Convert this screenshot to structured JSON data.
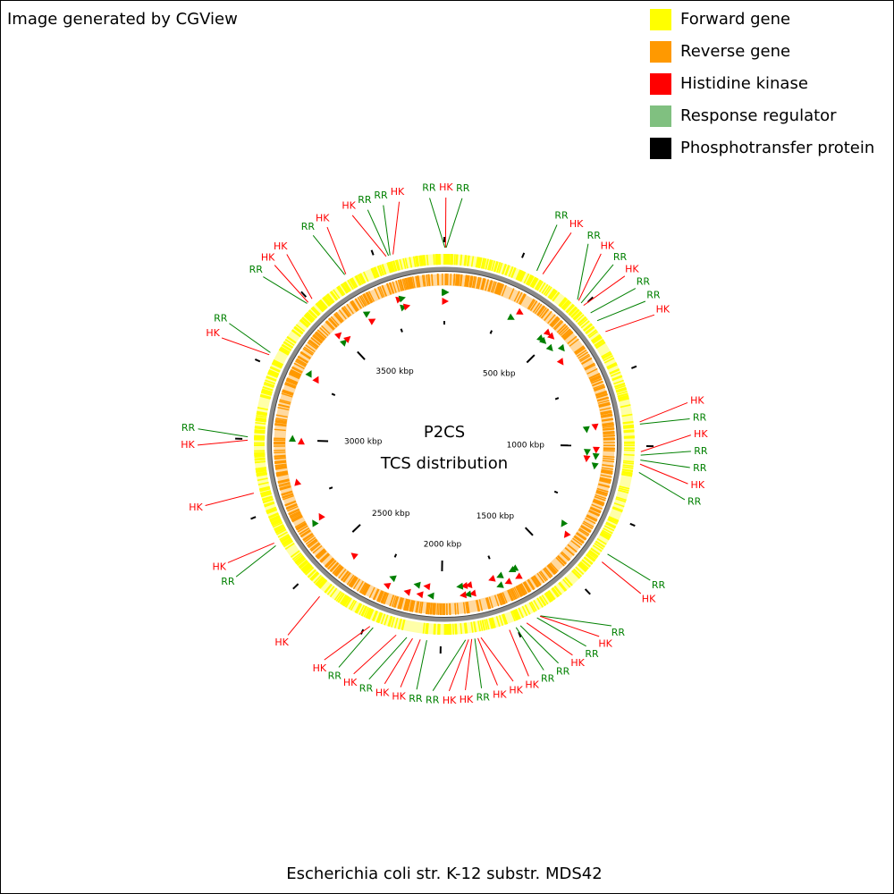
{
  "header": {
    "title": "Image generated by CGView"
  },
  "legend": [
    {
      "name": "Forward gene",
      "color": "#ffff00"
    },
    {
      "name": "Reverse gene",
      "color": "#ff9900"
    },
    {
      "name": "Histidine kinase",
      "color": "#ff0000"
    },
    {
      "name": "Response regulator",
      "color": "#80c080"
    },
    {
      "name": "Phosphotransfer protein",
      "color": "#000000"
    }
  ],
  "center": {
    "title": "P2CS",
    "subtitle": "TCS distribution"
  },
  "footer": {
    "organism": "Escherichia coli str. K-12 substr. MDS42"
  },
  "scale": {
    "lim": [
      0,
      3977
    ],
    "ticks": [
      {
        "value": 500,
        "label": "500 kbp"
      },
      {
        "value": 1000,
        "label": "1000 kbp"
      },
      {
        "value": 1500,
        "label": "1500 kbp"
      },
      {
        "value": 2000,
        "label": "2000 kbp"
      },
      {
        "value": 2500,
        "label": "2500 kbp"
      },
      {
        "value": 3000,
        "label": "3000 kbp"
      },
      {
        "value": 3500,
        "label": "3500 kbp"
      }
    ],
    "minor_ticks": [
      0,
      250,
      750,
      1250,
      1750,
      2250,
      2750,
      3250,
      3750
    ]
  },
  "features": [
    {
      "label": "RR",
      "kbp": 2,
      "color": "#008000"
    },
    {
      "label": "HK",
      "kbp": 4,
      "color": "#ff0000"
    },
    {
      "label": "RR",
      "kbp": 6,
      "color": "#008000"
    },
    {
      "label": "RR",
      "kbp": 310,
      "color": "#008000"
    },
    {
      "label": "HK",
      "kbp": 332,
      "color": "#ff0000"
    },
    {
      "label": "RR",
      "kbp": 471,
      "color": "#008000"
    },
    {
      "label": "HK",
      "kbp": 476,
      "color": "#ff0000"
    },
    {
      "label": "RR",
      "kbp": 487,
      "color": "#008000"
    },
    {
      "label": "HK",
      "kbp": 498,
      "color": "#ff0000"
    },
    {
      "label": "RR",
      "kbp": 531,
      "color": "#008000"
    },
    {
      "label": "RR",
      "kbp": 564,
      "color": "#008000"
    },
    {
      "label": "HK",
      "kbp": 608,
      "color": "#ff0000"
    },
    {
      "label": "HK",
      "kbp": 922,
      "color": "#ff0000"
    },
    {
      "label": "RR",
      "kbp": 929,
      "color": "#008000"
    },
    {
      "label": "HK",
      "kbp": 1018,
      "color": "#ff0000"
    },
    {
      "label": "RR",
      "kbp": 1029,
      "color": "#008000"
    },
    {
      "label": "RR",
      "kbp": 1045,
      "color": "#008000"
    },
    {
      "label": "HK",
      "kbp": 1058,
      "color": "#ff0000"
    },
    {
      "label": "RR",
      "kbp": 1085,
      "color": "#008000"
    },
    {
      "label": "RR",
      "kbp": 1369,
      "color": "#008000"
    },
    {
      "label": "HK",
      "kbp": 1400,
      "color": "#ff0000"
    },
    {
      "label": "RR",
      "kbp": 1665,
      "color": "#008000"
    },
    {
      "label": "HK",
      "kbp": 1667,
      "color": "#ff0000"
    },
    {
      "label": "RR",
      "kbp": 1678,
      "color": "#008000"
    },
    {
      "label": "HK",
      "kbp": 1715,
      "color": "#ff0000"
    },
    {
      "label": "RR",
      "kbp": 1737,
      "color": "#008000"
    },
    {
      "label": "RR",
      "kbp": 1752,
      "color": "#008000"
    },
    {
      "label": "HK",
      "kbp": 1775,
      "color": "#ff0000"
    },
    {
      "label": "HK",
      "kbp": 1870,
      "color": "#ff0000"
    },
    {
      "label": "HK",
      "kbp": 1880,
      "color": "#ff0000"
    },
    {
      "label": "RR",
      "kbp": 1890,
      "color": "#008000"
    },
    {
      "label": "HK",
      "kbp": 1900,
      "color": "#ff0000"
    },
    {
      "label": "HK",
      "kbp": 1910,
      "color": "#ff0000"
    },
    {
      "label": "RR",
      "kbp": 1920,
      "color": "#008000"
    },
    {
      "label": "RR",
      "kbp": 2045,
      "color": "#008000"
    },
    {
      "label": "HK",
      "kbp": 2066,
      "color": "#ff0000"
    },
    {
      "label": "HK",
      "kbp": 2091,
      "color": "#ff0000"
    },
    {
      "label": "RR",
      "kbp": 2110,
      "color": "#008000"
    },
    {
      "label": "HK",
      "kbp": 2145,
      "color": "#ff0000"
    },
    {
      "label": "RR",
      "kbp": 2223,
      "color": "#008000"
    },
    {
      "label": "HK",
      "kbp": 2234,
      "color": "#ff0000"
    },
    {
      "label": "HK",
      "kbp": 2423,
      "color": "#ff0000"
    },
    {
      "label": "RR",
      "kbp": 2640,
      "color": "#008000"
    },
    {
      "label": "HK",
      "kbp": 2650,
      "color": "#ff0000"
    },
    {
      "label": "HK",
      "kbp": 2824,
      "color": "#ff0000"
    },
    {
      "label": "HK",
      "kbp": 2996,
      "color": "#ff0000"
    },
    {
      "label": "RR",
      "kbp": 3007,
      "color": "#008000"
    },
    {
      "label": "HK",
      "kbp": 3282,
      "color": "#ff0000"
    },
    {
      "label": "RR",
      "kbp": 3290,
      "color": "#008000"
    },
    {
      "label": "RR",
      "kbp": 3488,
      "color": "#008000"
    },
    {
      "label": "HK",
      "kbp": 3493,
      "color": "#ff0000"
    },
    {
      "label": "HK",
      "kbp": 3510,
      "color": "#ff0000"
    },
    {
      "label": "RR",
      "kbp": 3641,
      "color": "#008000"
    },
    {
      "label": "HK",
      "kbp": 3645,
      "color": "#ff0000"
    },
    {
      "label": "HK",
      "kbp": 3787,
      "color": "#ff0000"
    },
    {
      "label": "RR",
      "kbp": 3795,
      "color": "#008000"
    },
    {
      "label": "RR",
      "kbp": 3800,
      "color": "#008000"
    },
    {
      "label": "HK",
      "kbp": 3810,
      "color": "#ff0000"
    }
  ]
}
